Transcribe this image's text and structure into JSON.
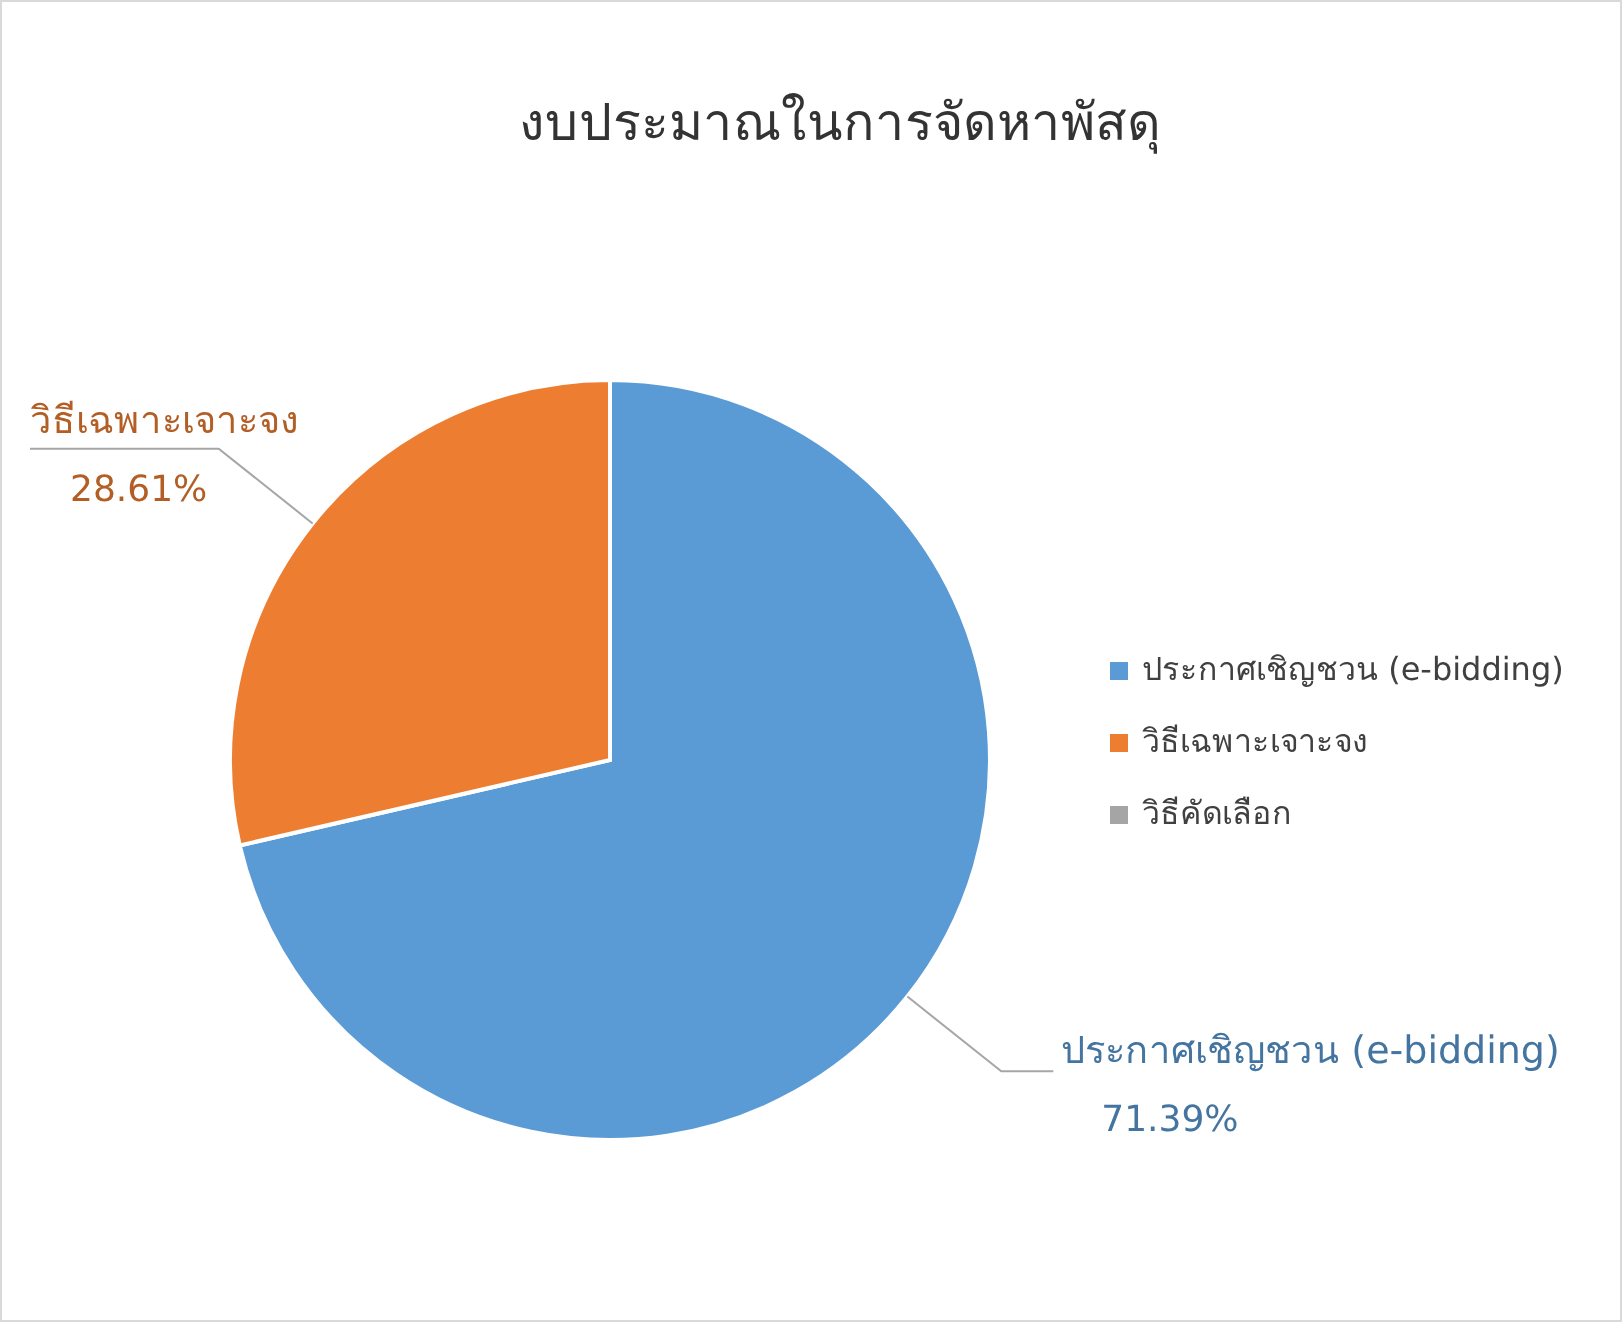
{
  "chart_data": {
    "type": "pie",
    "title": "งบประมาณในการจัดหาพัสดุ",
    "categories": [
      "ประกาศเชิญชวน (e-bidding)",
      "วิธีเฉพาะเจาะจง",
      "วิธีคัดเลือก"
    ],
    "values": [
      71.39,
      28.61,
      0
    ],
    "colors": [
      "#5b9bd5",
      "#ed7d31",
      "#a5a5a5"
    ],
    "value_labels": [
      "71.39%",
      "28.61%",
      null
    ],
    "legend": "right"
  }
}
